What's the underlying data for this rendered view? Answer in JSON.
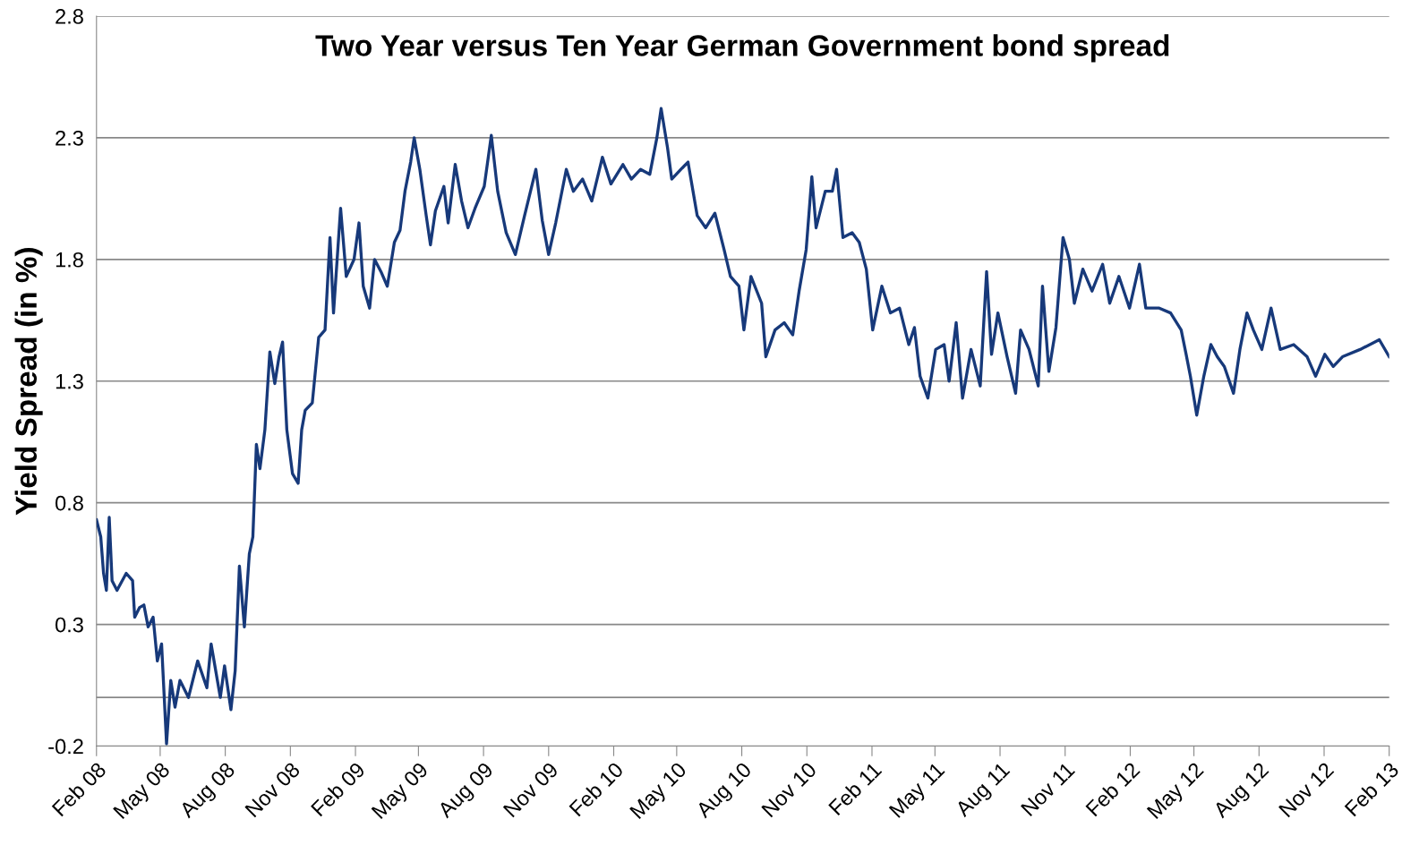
{
  "chart_data": {
    "type": "line",
    "title": "Two Year versus Ten Year German Government bond spread",
    "ylabel": "Yield Spread (in %)",
    "x": [
      "2008-02-01",
      "2008-02-07",
      "2008-02-11",
      "2008-02-15",
      "2008-02-19",
      "2008-02-23",
      "2008-03-01",
      "2008-03-14",
      "2008-03-23",
      "2008-03-26",
      "2008-04-02",
      "2008-04-08",
      "2008-04-14",
      "2008-04-21",
      "2008-04-27",
      "2008-05-03",
      "2008-05-10",
      "2008-05-16",
      "2008-05-22",
      "2008-05-29",
      "2008-06-10",
      "2008-06-23",
      "2008-07-06",
      "2008-07-12",
      "2008-07-25",
      "2008-07-31",
      "2008-08-09",
      "2008-08-15",
      "2008-08-21",
      "2008-08-28",
      "2008-09-04",
      "2008-09-09",
      "2008-09-14",
      "2008-09-19",
      "2008-09-26",
      "2008-10-03",
      "2008-10-10",
      "2008-10-16",
      "2008-10-21",
      "2008-10-27",
      "2008-11-04",
      "2008-11-12",
      "2008-11-17",
      "2008-11-22",
      "2008-12-02",
      "2008-12-11",
      "2008-12-20",
      "2008-12-27",
      "2009-01-01",
      "2009-01-11",
      "2009-01-19",
      "2009-01-30",
      "2009-02-06",
      "2009-02-12",
      "2009-02-21",
      "2009-02-28",
      "2009-03-09",
      "2009-03-18",
      "2009-03-28",
      "2009-04-05",
      "2009-04-12",
      "2009-04-20",
      "2009-04-25",
      "2009-05-03",
      "2009-05-12",
      "2009-05-18",
      "2009-05-25",
      "2009-06-06",
      "2009-06-12",
      "2009-06-22",
      "2009-07-01",
      "2009-07-10",
      "2009-07-20",
      "2009-08-02",
      "2009-08-12",
      "2009-08-21",
      "2009-09-02",
      "2009-09-15",
      "2009-09-28",
      "2009-10-14",
      "2009-10-23",
      "2009-11-01",
      "2009-11-11",
      "2009-11-26",
      "2009-12-06",
      "2009-12-19",
      "2010-01-01",
      "2010-01-16",
      "2010-01-28",
      "2010-02-14",
      "2010-02-26",
      "2010-03-11",
      "2010-03-24",
      "2010-04-03",
      "2010-04-09",
      "2010-04-18",
      "2010-04-24",
      "2010-05-07",
      "2010-05-17",
      "2010-05-30",
      "2010-06-11",
      "2010-06-24",
      "2010-07-07",
      "2010-07-16",
      "2010-07-28",
      "2010-08-04",
      "2010-08-14",
      "2010-08-29",
      "2010-09-04",
      "2010-09-17",
      "2010-09-30",
      "2010-10-12",
      "2010-10-21",
      "2010-10-31",
      "2010-11-08",
      "2010-11-14",
      "2010-11-27",
      "2010-12-07",
      "2010-12-13",
      "2010-12-22",
      "2011-01-04",
      "2011-01-14",
      "2011-01-24",
      "2011-02-02",
      "2011-02-15",
      "2011-02-27",
      "2011-03-12",
      "2011-03-25",
      "2011-04-02",
      "2011-04-10",
      "2011-04-21",
      "2011-05-02",
      "2011-05-14",
      "2011-05-21",
      "2011-05-31",
      "2011-06-09",
      "2011-06-21",
      "2011-07-04",
      "2011-07-13",
      "2011-07-20",
      "2011-07-29",
      "2011-08-11",
      "2011-08-23",
      "2011-08-30",
      "2011-09-11",
      "2011-09-24",
      "2011-09-30",
      "2011-10-09",
      "2011-10-19",
      "2011-10-29",
      "2011-11-07",
      "2011-11-14",
      "2011-11-26",
      "2011-12-09",
      "2011-12-24",
      "2012-01-03",
      "2012-01-16",
      "2012-01-31",
      "2012-02-14",
      "2012-02-23",
      "2012-03-13",
      "2012-03-29",
      "2012-04-13",
      "2012-04-20",
      "2012-04-26",
      "2012-05-05",
      "2012-05-15",
      "2012-05-25",
      "2012-06-03",
      "2012-06-13",
      "2012-06-26",
      "2012-07-05",
      "2012-07-15",
      "2012-07-24",
      "2012-08-05",
      "2012-08-18",
      "2012-08-31",
      "2012-09-19",
      "2012-10-08",
      "2012-10-20",
      "2012-11-02",
      "2012-11-14",
      "2012-11-27",
      "2012-12-22",
      "2013-01-18",
      "2013-02-01"
    ],
    "series": [
      {
        "color": "#17397a",
        "values": [
          0.73,
          0.66,
          0.51,
          0.44,
          0.74,
          0.48,
          0.44,
          0.51,
          0.48,
          0.33,
          0.37,
          0.38,
          0.29,
          0.33,
          0.15,
          0.22,
          -0.19,
          0.07,
          -0.04,
          0.07,
          0.0,
          0.15,
          0.04,
          0.22,
          0.0,
          0.13,
          -0.05,
          0.11,
          0.54,
          0.29,
          0.59,
          0.66,
          1.04,
          0.94,
          1.1,
          1.42,
          1.29,
          1.4,
          1.46,
          1.1,
          0.92,
          0.88,
          1.1,
          1.18,
          1.21,
          1.48,
          1.51,
          1.89,
          1.58,
          2.01,
          1.73,
          1.8,
          1.95,
          1.69,
          1.6,
          1.8,
          1.75,
          1.69,
          1.87,
          1.92,
          2.08,
          2.2,
          2.3,
          2.17,
          1.98,
          1.86,
          2.0,
          2.1,
          1.95,
          2.19,
          2.04,
          1.93,
          2.01,
          2.1,
          2.31,
          2.08,
          1.91,
          1.82,
          1.98,
          2.17,
          1.96,
          1.82,
          1.95,
          2.17,
          2.08,
          2.13,
          2.04,
          2.22,
          2.11,
          2.19,
          2.13,
          2.17,
          2.15,
          2.3,
          2.42,
          2.26,
          2.13,
          2.17,
          2.2,
          1.98,
          1.93,
          1.99,
          1.84,
          1.73,
          1.69,
          1.51,
          1.73,
          1.62,
          1.4,
          1.51,
          1.54,
          1.49,
          1.67,
          1.84,
          2.14,
          1.93,
          2.08,
          2.08,
          2.17,
          1.89,
          1.91,
          1.87,
          1.76,
          1.51,
          1.69,
          1.58,
          1.6,
          1.45,
          1.52,
          1.32,
          1.23,
          1.43,
          1.45,
          1.3,
          1.54,
          1.23,
          1.43,
          1.28,
          1.75,
          1.41,
          1.58,
          1.4,
          1.25,
          1.51,
          1.43,
          1.28,
          1.69,
          1.34,
          1.52,
          1.89,
          1.8,
          1.62,
          1.76,
          1.67,
          1.78,
          1.62,
          1.73,
          1.6,
          1.78,
          1.6,
          1.6,
          1.58,
          1.51,
          1.41,
          1.32,
          1.16,
          1.32,
          1.45,
          1.4,
          1.36,
          1.25,
          1.43,
          1.58,
          1.51,
          1.43,
          1.6,
          1.43,
          1.45,
          1.4,
          1.32,
          1.41,
          1.36,
          1.4,
          1.43,
          1.47,
          1.4
        ]
      }
    ],
    "xlim": [
      "2008-02-01",
      "2013-02-01"
    ],
    "xticks": [
      {
        "value": "2008-02-01",
        "label": "Feb 08"
      },
      {
        "value": "2008-05-01",
        "label": "May 08"
      },
      {
        "value": "2008-08-01",
        "label": "Aug 08"
      },
      {
        "value": "2008-11-01",
        "label": "Nov 08"
      },
      {
        "value": "2009-02-01",
        "label": "Feb 09"
      },
      {
        "value": "2009-05-01",
        "label": "May 09"
      },
      {
        "value": "2009-08-01",
        "label": "Aug 09"
      },
      {
        "value": "2009-11-01",
        "label": "Nov 09"
      },
      {
        "value": "2010-02-01",
        "label": "Feb 10"
      },
      {
        "value": "2010-05-01",
        "label": "May 10"
      },
      {
        "value": "2010-08-01",
        "label": "Aug 10"
      },
      {
        "value": "2010-11-01",
        "label": "Nov 10"
      },
      {
        "value": "2011-02-01",
        "label": "Feb 11"
      },
      {
        "value": "2011-05-01",
        "label": "May 11"
      },
      {
        "value": "2011-08-01",
        "label": "Aug 11"
      },
      {
        "value": "2011-11-01",
        "label": "Nov 11"
      },
      {
        "value": "2012-02-01",
        "label": "Feb 12"
      },
      {
        "value": "2012-05-01",
        "label": "May 12"
      },
      {
        "value": "2012-08-01",
        "label": "Aug 12"
      },
      {
        "value": "2012-11-01",
        "label": "Nov 12"
      },
      {
        "value": "2013-02-01",
        "label": "Feb 13"
      }
    ],
    "ylim": [
      -0.2,
      2.8
    ],
    "yticks": [
      {
        "value": -0.2,
        "label": "-0.2"
      },
      0.3,
      0.8,
      1.3,
      1.8,
      2.3,
      2.8
    ],
    "ref_lines": [
      {
        "axis": "y",
        "value": 0,
        "color": "#888888"
      }
    ],
    "grid": "y",
    "line_style": "solid",
    "legend": false
  }
}
